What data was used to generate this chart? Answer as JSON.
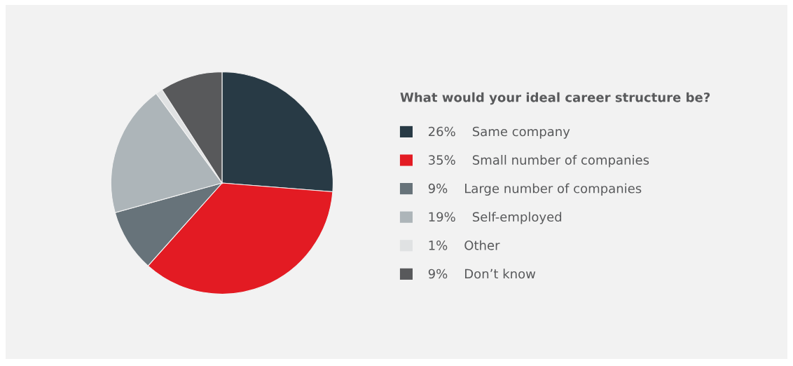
{
  "chart_data": {
    "type": "pie",
    "legend_title": "What would your ideal career structure be?",
    "categories": [
      "Same company",
      "Small number of companies",
      "Large number of companies",
      "Self-employed",
      "Other",
      "Don’t know"
    ],
    "values": [
      26,
      35,
      9,
      19,
      1,
      9
    ],
    "colors": [
      "#283a45",
      "#e31b23",
      "#67737a",
      "#adb5b9",
      "#e0e2e3",
      "#58595b"
    ],
    "value_labels": [
      "26%",
      "35%",
      "9%",
      "19%",
      "1%",
      "9%"
    ],
    "legend": "right"
  }
}
